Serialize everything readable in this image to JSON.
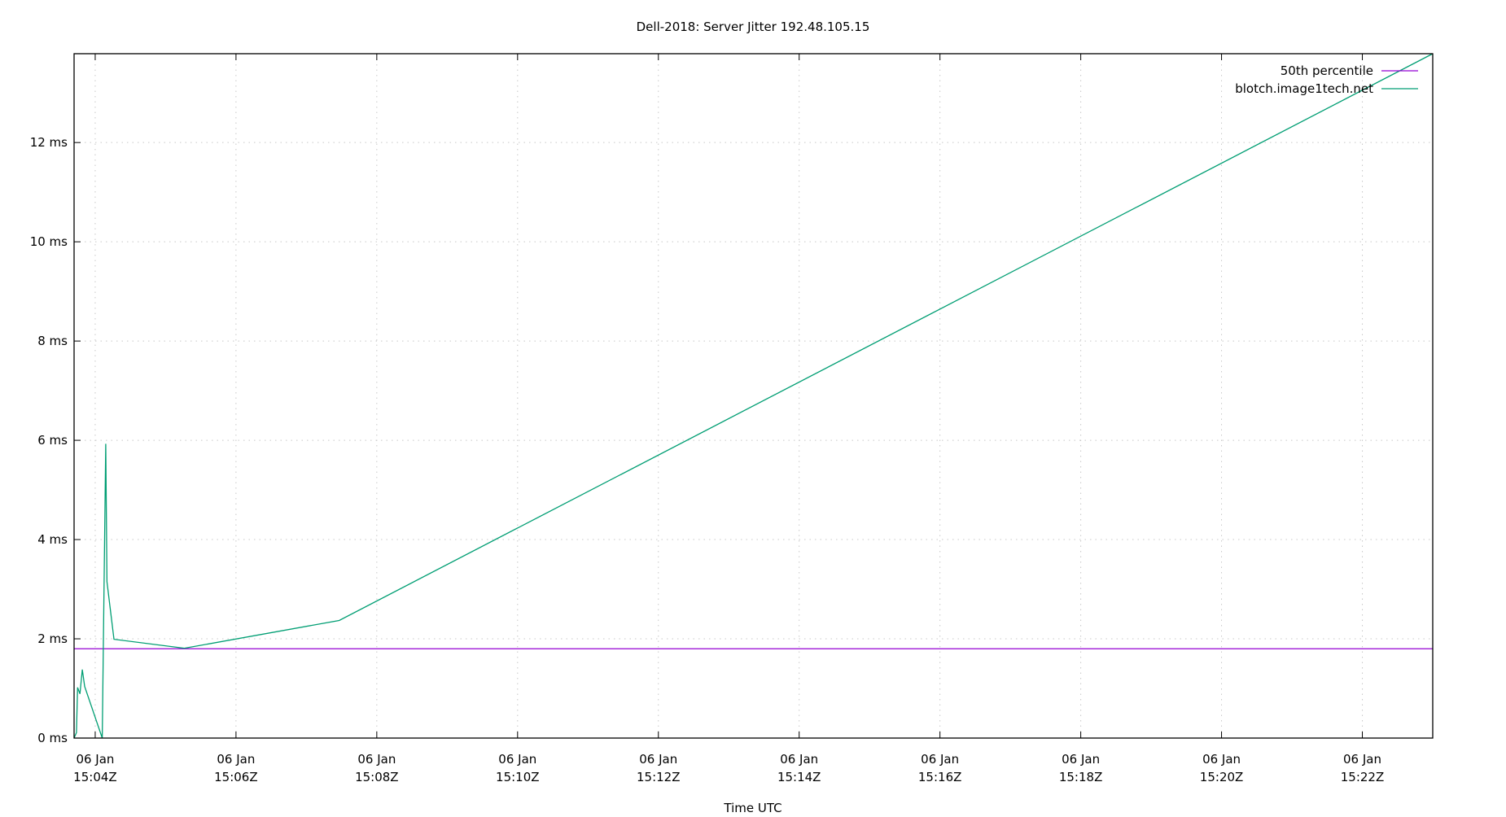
{
  "chart_data": {
    "type": "line",
    "title": "Dell-2018: Server Jitter 192.48.105.15",
    "xlabel": "Time UTC",
    "ylabel": "",
    "xlim": [
      "15:03:42",
      "15:23:00"
    ],
    "ylim": [
      0,
      13.79
    ],
    "x_ticks": [
      {
        "t": "15:04:00",
        "date": "06 Jan",
        "time": "15:04Z"
      },
      {
        "t": "15:06:00",
        "date": "06 Jan",
        "time": "15:06Z"
      },
      {
        "t": "15:08:00",
        "date": "06 Jan",
        "time": "15:08Z"
      },
      {
        "t": "15:10:00",
        "date": "06 Jan",
        "time": "15:10Z"
      },
      {
        "t": "15:12:00",
        "date": "06 Jan",
        "time": "15:12Z"
      },
      {
        "t": "15:14:00",
        "date": "06 Jan",
        "time": "15:14Z"
      },
      {
        "t": "15:16:00",
        "date": "06 Jan",
        "time": "15:16Z"
      },
      {
        "t": "15:18:00",
        "date": "06 Jan",
        "time": "15:18Z"
      },
      {
        "t": "15:20:00",
        "date": "06 Jan",
        "time": "15:20Z"
      },
      {
        "t": "15:22:00",
        "date": "06 Jan",
        "time": "15:22Z"
      }
    ],
    "y_ticks": [
      {
        "v": 0,
        "label": "0 ms"
      },
      {
        "v": 2,
        "label": "2 ms"
      },
      {
        "v": 4,
        "label": "4 ms"
      },
      {
        "v": 6,
        "label": "6 ms"
      },
      {
        "v": 8,
        "label": "8 ms"
      },
      {
        "v": 10,
        "label": "10 ms"
      },
      {
        "v": 12,
        "label": "12 ms"
      }
    ],
    "grid": true,
    "legend_position": "top-right",
    "series": [
      {
        "name": "50th percentile",
        "color": "#9400d3",
        "type": "hline",
        "value": 1.8
      },
      {
        "name": "blotch.image1tech.net",
        "color": "#009e73",
        "points": [
          [
            "15:03:42",
            0.0
          ],
          [
            "15:03:44",
            0.11
          ],
          [
            "15:03:45",
            1.02
          ],
          [
            "15:03:47",
            0.89
          ],
          [
            "15:03:49",
            1.38
          ],
          [
            "15:03:51",
            1.04
          ],
          [
            "15:04:06",
            0.0
          ],
          [
            "15:04:09",
            5.93
          ],
          [
            "15:04:10",
            3.15
          ],
          [
            "15:04:16",
            1.99
          ],
          [
            "15:05:16",
            1.81
          ],
          [
            "15:07:28",
            2.37
          ],
          [
            "15:23:00",
            13.79
          ]
        ]
      }
    ]
  }
}
